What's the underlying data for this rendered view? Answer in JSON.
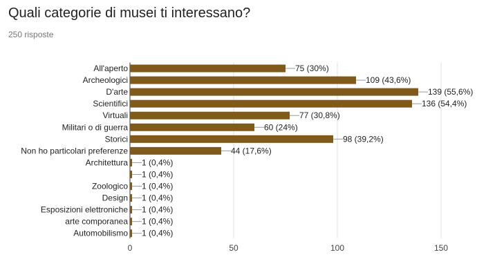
{
  "header": {
    "title": "Quali categorie di musei ti interessano?",
    "subtitle": "250 risposte"
  },
  "chart_data": {
    "type": "bar",
    "orientation": "horizontal",
    "categories": [
      "All'aperto",
      "Archeologici",
      "D'arte",
      "Scientifici",
      "Virtuali",
      "Militari o di guerra",
      "Storici",
      "Non ho particolari preferenze",
      "Architettura",
      "",
      "Zoologico",
      "Design",
      "Esposizioni elettroniche",
      "arte comporanea",
      "Automobilismo"
    ],
    "values": [
      75,
      109,
      139,
      136,
      77,
      60,
      98,
      44,
      1,
      1,
      1,
      1,
      1,
      1,
      1
    ],
    "data_labels": [
      "75 (30%)",
      "109 (43,6%)",
      "139 (55,6%)",
      "136 (54,4%)",
      "77 (30,8%)",
      "60 (24%)",
      "98 (39,2%)",
      "44 (17,6%)",
      "1 (0,4%)",
      "1 (0,4%)",
      "1 (0,4%)",
      "1 (0,4%)",
      "1 (0,4%)",
      "1 (0,4%)",
      "1 (0,4%)"
    ],
    "xlim": [
      0,
      150
    ],
    "xticks": [
      0,
      50,
      100,
      150
    ],
    "xtick_labels": [
      "0",
      "50",
      "100",
      "150"
    ],
    "grid": true,
    "bar_color": "#7f5a1b",
    "title": "Quali categorie di musei ti interessano?",
    "xlabel": "",
    "ylabel": ""
  }
}
